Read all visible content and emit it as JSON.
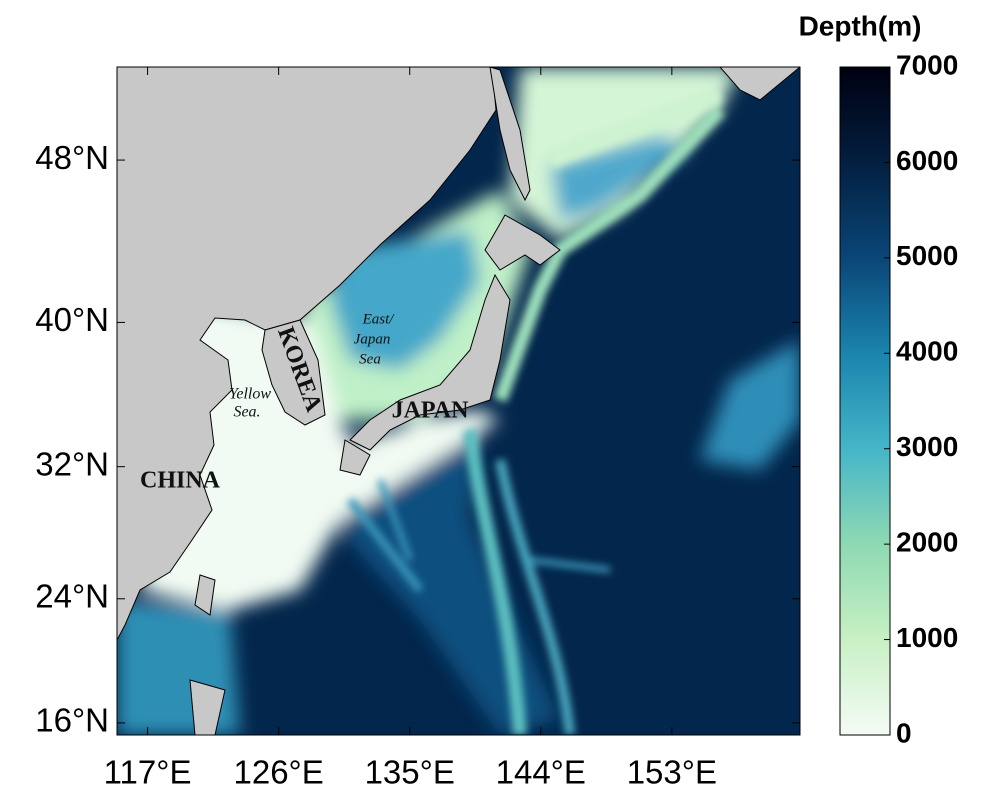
{
  "map": {
    "xlim": [
      114.9,
      161.8
    ],
    "xticks": [
      {
        "value": 117,
        "label": "117°E"
      },
      {
        "value": 126,
        "label": "126°E"
      },
      {
        "value": 135,
        "label": "135°E"
      },
      {
        "value": 144,
        "label": "144°E"
      },
      {
        "value": 153,
        "label": "153°E"
      }
    ],
    "ylim": [
      15.2,
      52.1
    ],
    "yticks": [
      {
        "value": 16,
        "label": "16°N"
      },
      {
        "value": 24,
        "label": "24°N"
      },
      {
        "value": 32,
        "label": "32°N"
      },
      {
        "value": 40,
        "label": "40°N"
      },
      {
        "value": 48,
        "label": "48°N"
      }
    ],
    "places": {
      "china": "CHINA",
      "korea": "KOREA",
      "japan": "JAPAN",
      "yellow_sea": [
        "Yellow",
        "Sea."
      ],
      "east_sea": [
        "East/",
        "Japan",
        "Sea"
      ]
    },
    "colorbar": {
      "title": "Depth(m)",
      "lim": [
        0,
        7000
      ],
      "ticks": [
        0,
        1000,
        2000,
        3000,
        4000,
        5000,
        6000,
        7000
      ]
    }
  }
}
